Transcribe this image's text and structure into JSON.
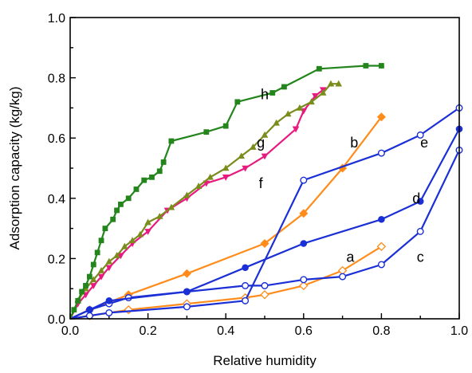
{
  "chart_data": {
    "type": "line",
    "title": "",
    "xlabel": "Relative humidity",
    "ylabel": "Adsorption capacity (kg/kg)",
    "xlim": [
      0.0,
      1.0
    ],
    "ylim": [
      0.0,
      1.0
    ],
    "x_ticks": [
      "0.0",
      "0.2",
      "0.4",
      "0.6",
      "0.8",
      "1.0"
    ],
    "y_ticks": [
      "0.0",
      "0.2",
      "0.4",
      "0.6",
      "0.8",
      "1.0"
    ],
    "grid": false,
    "legend": "none",
    "series": [
      {
        "label": "a",
        "color": "#ff8c1a",
        "marker": "diamond-open",
        "points": [
          [
            0,
            0
          ],
          [
            0.05,
            0.01
          ],
          [
            0.15,
            0.03
          ],
          [
            0.3,
            0.05
          ],
          [
            0.45,
            0.07
          ],
          [
            0.5,
            0.08
          ],
          [
            0.6,
            0.11
          ],
          [
            0.7,
            0.16
          ],
          [
            0.8,
            0.24
          ]
        ]
      },
      {
        "label": "b",
        "color": "#ff8c1a",
        "marker": "diamond-filled",
        "points": [
          [
            0,
            0
          ],
          [
            0.05,
            0.03
          ],
          [
            0.15,
            0.08
          ],
          [
            0.3,
            0.15
          ],
          [
            0.5,
            0.25
          ],
          [
            0.6,
            0.35
          ],
          [
            0.7,
            0.5
          ],
          [
            0.8,
            0.67
          ]
        ]
      },
      {
        "label": "c",
        "color": "#1a2fd6",
        "marker": "circle-open",
        "points": [
          [
            0,
            0
          ],
          [
            0.05,
            0.03
          ],
          [
            0.1,
            0.05
          ],
          [
            0.15,
            0.07
          ],
          [
            0.3,
            0.09
          ],
          [
            0.45,
            0.11
          ],
          [
            0.5,
            0.11
          ],
          [
            0.6,
            0.13
          ],
          [
            0.7,
            0.14
          ],
          [
            0.8,
            0.18
          ],
          [
            0.9,
            0.29
          ],
          [
            1.0,
            0.56
          ]
        ]
      },
      {
        "label": "d",
        "color": "#1a2fd6",
        "marker": "circle-filled",
        "points": [
          [
            0,
            0
          ],
          [
            0.05,
            0.03
          ],
          [
            0.1,
            0.06
          ],
          [
            0.3,
            0.09
          ],
          [
            0.45,
            0.17
          ],
          [
            0.6,
            0.25
          ],
          [
            0.8,
            0.33
          ],
          [
            0.9,
            0.39
          ],
          [
            1.0,
            0.63
          ]
        ]
      },
      {
        "label": "e",
        "color": "#1a2fd6",
        "marker": "circle-open",
        "points": [
          [
            0,
            0
          ],
          [
            0.05,
            0.01
          ],
          [
            0.1,
            0.02
          ],
          [
            0.3,
            0.04
          ],
          [
            0.45,
            0.06
          ],
          [
            0.6,
            0.46
          ],
          [
            0.8,
            0.55
          ],
          [
            0.9,
            0.61
          ],
          [
            1.0,
            0.7
          ]
        ]
      },
      {
        "label": "f",
        "color": "#e8197f",
        "marker": "triangle-down",
        "points": [
          [
            0,
            0
          ],
          [
            0.02,
            0.05
          ],
          [
            0.04,
            0.08
          ],
          [
            0.06,
            0.11
          ],
          [
            0.08,
            0.14
          ],
          [
            0.1,
            0.17
          ],
          [
            0.13,
            0.21
          ],
          [
            0.16,
            0.25
          ],
          [
            0.2,
            0.29
          ],
          [
            0.25,
            0.36
          ],
          [
            0.3,
            0.4
          ],
          [
            0.35,
            0.45
          ],
          [
            0.4,
            0.47
          ],
          [
            0.45,
            0.5
          ],
          [
            0.5,
            0.54
          ],
          [
            0.58,
            0.63
          ],
          [
            0.6,
            0.69
          ],
          [
            0.63,
            0.74
          ],
          [
            0.65,
            0.76
          ]
        ]
      },
      {
        "label": "g",
        "color": "#7a8c1c",
        "marker": "triangle-up",
        "points": [
          [
            0,
            0
          ],
          [
            0.02,
            0.06
          ],
          [
            0.04,
            0.1
          ],
          [
            0.06,
            0.13
          ],
          [
            0.08,
            0.16
          ],
          [
            0.1,
            0.19
          ],
          [
            0.12,
            0.21
          ],
          [
            0.14,
            0.24
          ],
          [
            0.16,
            0.26
          ],
          [
            0.18,
            0.28
          ],
          [
            0.2,
            0.32
          ],
          [
            0.23,
            0.34
          ],
          [
            0.26,
            0.37
          ],
          [
            0.3,
            0.41
          ],
          [
            0.33,
            0.44
          ],
          [
            0.36,
            0.47
          ],
          [
            0.4,
            0.5
          ],
          [
            0.44,
            0.54
          ],
          [
            0.47,
            0.57
          ],
          [
            0.5,
            0.61
          ],
          [
            0.53,
            0.65
          ],
          [
            0.56,
            0.68
          ],
          [
            0.59,
            0.7
          ],
          [
            0.62,
            0.72
          ],
          [
            0.65,
            0.75
          ],
          [
            0.67,
            0.78
          ],
          [
            0.69,
            0.78
          ]
        ]
      },
      {
        "label": "h",
        "color": "#23851c",
        "marker": "square",
        "points": [
          [
            0,
            0
          ],
          [
            0.01,
            0.03
          ],
          [
            0.02,
            0.06
          ],
          [
            0.03,
            0.09
          ],
          [
            0.04,
            0.11
          ],
          [
            0.05,
            0.14
          ],
          [
            0.06,
            0.18
          ],
          [
            0.07,
            0.22
          ],
          [
            0.08,
            0.26
          ],
          [
            0.09,
            0.3
          ],
          [
            0.11,
            0.33
          ],
          [
            0.12,
            0.36
          ],
          [
            0.13,
            0.38
          ],
          [
            0.15,
            0.4
          ],
          [
            0.17,
            0.43
          ],
          [
            0.19,
            0.46
          ],
          [
            0.21,
            0.47
          ],
          [
            0.23,
            0.49
          ],
          [
            0.24,
            0.52
          ],
          [
            0.26,
            0.59
          ],
          [
            0.35,
            0.62
          ],
          [
            0.4,
            0.64
          ],
          [
            0.43,
            0.72
          ],
          [
            0.52,
            0.75
          ],
          [
            0.55,
            0.77
          ],
          [
            0.64,
            0.83
          ],
          [
            0.76,
            0.84
          ],
          [
            0.8,
            0.84
          ]
        ]
      }
    ],
    "annotations": [
      {
        "text": "a",
        "x": 0.72,
        "y": 0.205
      },
      {
        "text": "b",
        "x": 0.73,
        "y": 0.585
      },
      {
        "text": "c",
        "x": 0.9,
        "y": 0.205
      },
      {
        "text": "d",
        "x": 0.89,
        "y": 0.4
      },
      {
        "text": "e",
        "x": 0.91,
        "y": 0.585
      },
      {
        "text": "f",
        "x": 0.49,
        "y": 0.45
      },
      {
        "text": "g",
        "x": 0.49,
        "y": 0.585
      },
      {
        "text": "h",
        "x": 0.5,
        "y": 0.745
      }
    ]
  }
}
